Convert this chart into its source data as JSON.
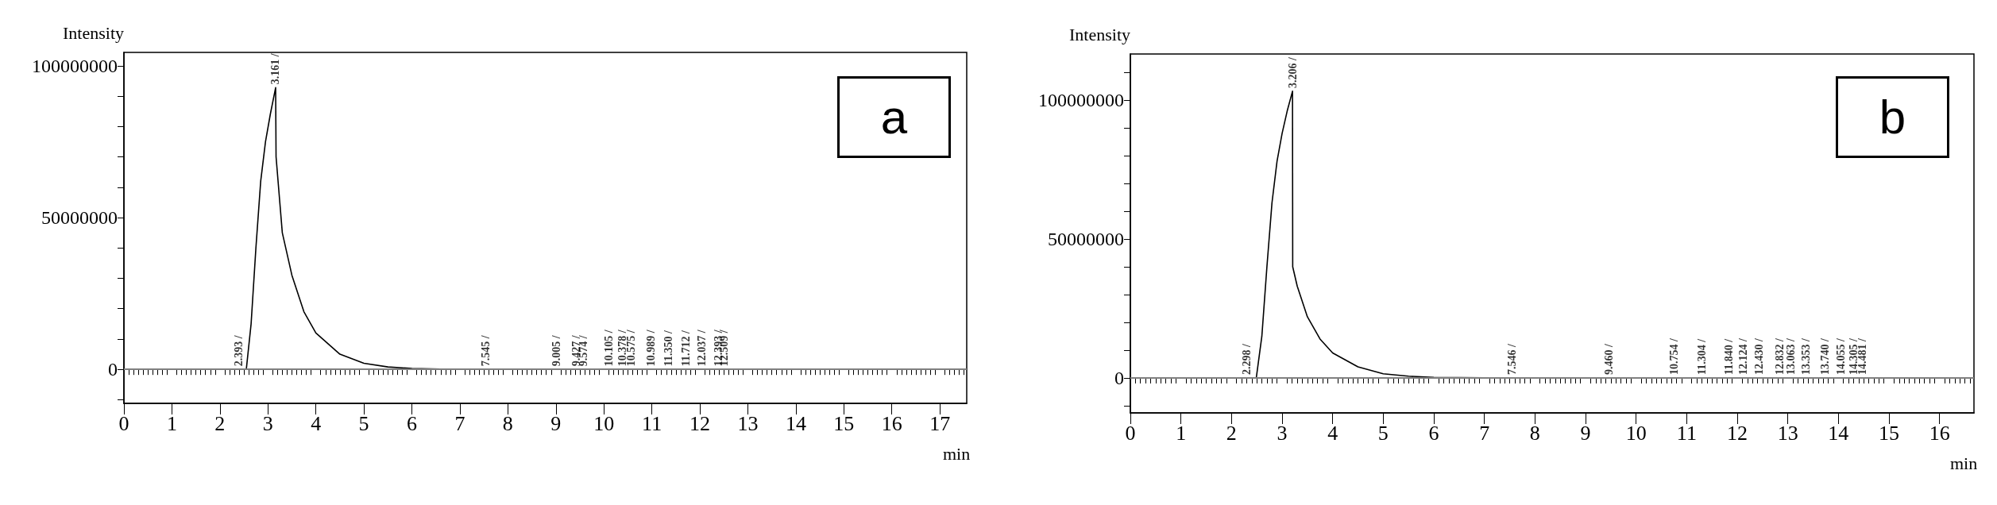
{
  "chart_data": [
    {
      "type": "line",
      "xlabel": "min",
      "ylabel": "Intensity",
      "xlim": [
        0,
        17.56
      ],
      "ylim": [
        -11200000,
        104400000
      ],
      "xticks": [
        0,
        1,
        2,
        3,
        4,
        5,
        6,
        7,
        8,
        9,
        10,
        11,
        12,
        13,
        14,
        15,
        16,
        17
      ],
      "yticks": [
        {
          "value": -10000000,
          "label": null
        },
        0,
        {
          "value": 10000000,
          "label": null
        },
        {
          "value": 20000000,
          "label": null
        },
        {
          "value": 30000000,
          "label": null
        },
        {
          "value": 40000000,
          "label": null
        },
        50000000,
        {
          "value": 60000000,
          "label": null
        },
        {
          "value": 70000000,
          "label": null
        },
        {
          "value": 80000000,
          "label": null
        },
        {
          "value": 90000000,
          "label": null
        },
        100000000
      ],
      "grid": false,
      "marker": "none",
      "line_style": "solid",
      "series": [
        {
          "color": "#000000",
          "x": [
            2.1,
            2.55,
            2.65,
            2.75,
            2.85,
            2.95,
            3.05,
            3.161,
            3.17,
            3.3,
            3.5,
            3.75,
            4,
            4.5,
            5,
            5.5,
            6,
            7,
            8,
            13.1
          ],
          "values": [
            0,
            0,
            15000000,
            40000000,
            62000000,
            75000000,
            84000000,
            92800000,
            70000000,
            45000000,
            31000000,
            19000000,
            12000000,
            5000000,
            2000000,
            800000,
            300000,
            0,
            0,
            0
          ]
        }
      ],
      "ref_lines": [
        {
          "axis": "y",
          "value": 0,
          "color": "#808080"
        }
      ],
      "annotations": [
        "a",
        {
          "text": "2.393 /",
          "x": 2.393,
          "y": 0
        },
        {
          "text": "3.161 /",
          "x": 3.161,
          "y": 92800000
        },
        {
          "text": "7.545 /",
          "x": 7.545,
          "y": 0
        },
        {
          "text": "9.005 /",
          "x": 9.005,
          "y": 0
        },
        {
          "text": "9.427 /",
          "x": 9.427,
          "y": 0
        },
        {
          "text": "9.574 /",
          "x": 9.574,
          "y": 0
        },
        {
          "text": "10.105 /",
          "x": 10.105,
          "y": 0
        },
        {
          "text": "10.378 /",
          "x": 10.378,
          "y": 0
        },
        {
          "text": "10.575 /",
          "x": 10.575,
          "y": 0
        },
        {
          "text": "10.989 /",
          "x": 10.989,
          "y": 0
        },
        {
          "text": "11.350 /",
          "x": 11.35,
          "y": 0
        },
        {
          "text": "11.712 /",
          "x": 11.712,
          "y": 0
        },
        {
          "text": "12.037 /",
          "x": 12.037,
          "y": 0
        },
        {
          "text": "12.393 /",
          "x": 12.393,
          "y": 0
        },
        {
          "text": "12.509 /",
          "x": 12.509,
          "y": 0
        }
      ]
    },
    {
      "type": "line",
      "xlabel": "min",
      "ylabel": "Intensity",
      "xlim": [
        0,
        16.68
      ],
      "ylim": [
        -12600000,
        116600000
      ],
      "xticks": [
        0,
        1,
        2,
        3,
        4,
        5,
        6,
        7,
        8,
        9,
        10,
        11,
        12,
        13,
        14,
        15,
        16
      ],
      "yticks": [
        {
          "value": -10000000,
          "label": null
        },
        0,
        {
          "value": 10000000,
          "label": null
        },
        {
          "value": 20000000,
          "label": null
        },
        {
          "value": 30000000,
          "label": null
        },
        {
          "value": 40000000,
          "label": null
        },
        50000000,
        {
          "value": 60000000,
          "label": null
        },
        {
          "value": 70000000,
          "label": null
        },
        {
          "value": 80000000,
          "label": null
        },
        {
          "value": 90000000,
          "label": null
        },
        100000000,
        {
          "value": 110000000,
          "label": null
        }
      ],
      "grid": false,
      "marker": "none",
      "line_style": "solid",
      "series": [
        {
          "color": "#000000",
          "x": [
            2.0,
            2.49,
            2.6,
            2.7,
            2.8,
            2.9,
            3.0,
            3.1,
            3.206,
            3.21,
            3.3,
            3.5,
            3.75,
            4,
            4.5,
            5,
            5.5,
            6,
            7,
            15.2
          ],
          "values": [
            0,
            0,
            15000000,
            40000000,
            63000000,
            78000000,
            88000000,
            96000000,
            103200000,
            40000000,
            33000000,
            22000000,
            14000000,
            9000000,
            4000000,
            1500000,
            600000,
            200000,
            0,
            0
          ]
        }
      ],
      "ref_lines": [
        {
          "axis": "y",
          "value": 0,
          "color": "#808080"
        }
      ],
      "annotations": [
        "b",
        {
          "text": "2.298 /",
          "x": 2.298,
          "y": 0
        },
        {
          "text": "3.206 /",
          "x": 3.206,
          "y": 103200000
        },
        {
          "text": "7.546 /",
          "x": 7.546,
          "y": 0
        },
        {
          "text": "9.460 /",
          "x": 9.46,
          "y": 0
        },
        {
          "text": "10.754 /",
          "x": 10.754,
          "y": 0
        },
        {
          "text": "11.304 /",
          "x": 11.304,
          "y": 0
        },
        {
          "text": "11.840 /",
          "x": 11.84,
          "y": 0
        },
        {
          "text": "12.124 /",
          "x": 12.124,
          "y": 0
        },
        {
          "text": "12.430 /",
          "x": 12.43,
          "y": 0
        },
        {
          "text": "12.832 /",
          "x": 12.832,
          "y": 0
        },
        {
          "text": "13.063 /",
          "x": 13.063,
          "y": 0
        },
        {
          "text": "13.353 /",
          "x": 13.353,
          "y": 0
        },
        {
          "text": "13.740 /",
          "x": 13.74,
          "y": 0
        },
        {
          "text": "14.055 /",
          "x": 14.055,
          "y": 0
        },
        {
          "text": "14.305 /",
          "x": 14.305,
          "y": 0
        },
        {
          "text": "14.481 /",
          "x": 14.481,
          "y": 0
        }
      ]
    }
  ]
}
